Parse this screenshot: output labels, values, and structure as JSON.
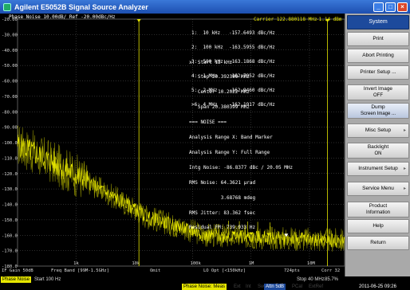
{
  "window": {
    "title": "Agilent E5052B Signal Source Analyzer"
  },
  "plot": {
    "header_left": "Phase Noise 10.00dB/ Ref -20.00dBc/Hz",
    "carrier": "Carrier 122.880118 MHz",
    "carrier_level": "-1.14 dBm",
    "y_ticks": [
      "-20.00",
      "-30.00",
      "-40.00",
      "-50.00",
      "-60.00",
      "-70.00",
      "-80.00",
      "-90.00",
      "-100.0",
      "-110.0",
      "-120.0",
      "-130.0",
      "-140.0",
      "-150.0",
      "-160.0",
      "-170.0",
      "-180.0"
    ],
    "x_ticks": [
      "1k",
      "10k",
      "100k",
      "1M",
      "10M"
    ],
    "markers": [
      "1:  10 kHz   -157.6493 dBc/Hz",
      "2:  100 kHz  -163.5955 dBc/Hz",
      "3:  500 kHz  -163.1868 dBc/Hz",
      "4:  1 MHz    -162.7952 dBc/Hz",
      "5:  2 MHz    -162.9460 dBc/Hz",
      ">6: 4 MHz    -162.1917 dBc/Hz"
    ],
    "info": [
      "x: Start 12 kHz",
      "   Stop 20.392399 MHz",
      "   Center 10.2022 MHz",
      "   Span 20.380399 MHz",
      "=== NOISE ===",
      "Analysis Range X: Band Marker",
      "Analysis Range Y: Full Range",
      "Intg Noise: -86.8377 dBc / 20.05 MHz",
      "RMS Noise: 64.3621 µrad",
      "           3.68768 mdeg",
      "RMS Jitter: 83.362 fsec",
      "Residual FM: 739.933 Hz"
    ],
    "bottom_labels": {
      "if_gain": "IF Gain 50dB",
      "freq_band": "Freq Band [99M-1.5GHz]",
      "omit": "Omit",
      "lo_opt": "LO Opt [<150kHz]",
      "points": "724pts",
      "corr": "Corr 32"
    },
    "start": "Start 100 Hz",
    "stop": "Stop 40 MHz",
    "percent": "85.7%",
    "trace_label": "Phase Noise"
  },
  "softkeys": {
    "header": "System",
    "items": [
      {
        "label": "Print",
        "sub": "",
        "arrow": false
      },
      {
        "label": "Abort Printing",
        "sub": "",
        "arrow": false
      },
      {
        "label": "Printer Setup ...",
        "sub": "",
        "arrow": false
      },
      {
        "label": "Invert Image",
        "sub": "OFF",
        "arrow": false
      },
      {
        "label": "Dump",
        "sub": "Screen Image ...",
        "arrow": false
      },
      {
        "label": "Misc Setup",
        "sub": "",
        "arrow": true
      },
      {
        "label": "Backlight",
        "sub": "ON",
        "arrow": false
      },
      {
        "label": "Instrument Setup",
        "sub": "",
        "arrow": true
      },
      {
        "label": "Service Menu",
        "sub": "",
        "arrow": true
      },
      {
        "label": "Product",
        "sub": "Information",
        "arrow": false
      },
      {
        "label": "Help",
        "sub": "",
        "arrow": false
      },
      {
        "label": "Return",
        "sub": "",
        "arrow": false
      }
    ]
  },
  "status": {
    "meas": "Phase Noise: Meas",
    "ext": "Ext",
    "trig": "Int",
    "svc": "Svc",
    "user": "PCal",
    "atten": "Attn 5dB",
    "extra": "ExtRef",
    "datetime": "2011-06-25 09:26"
  },
  "colors": {
    "trace": "#e6e600",
    "trace_dim": "#8a8a00",
    "grid": "#5a5a5a",
    "text": "#ffffff",
    "softkey_header": "#1d4a9c"
  }
}
